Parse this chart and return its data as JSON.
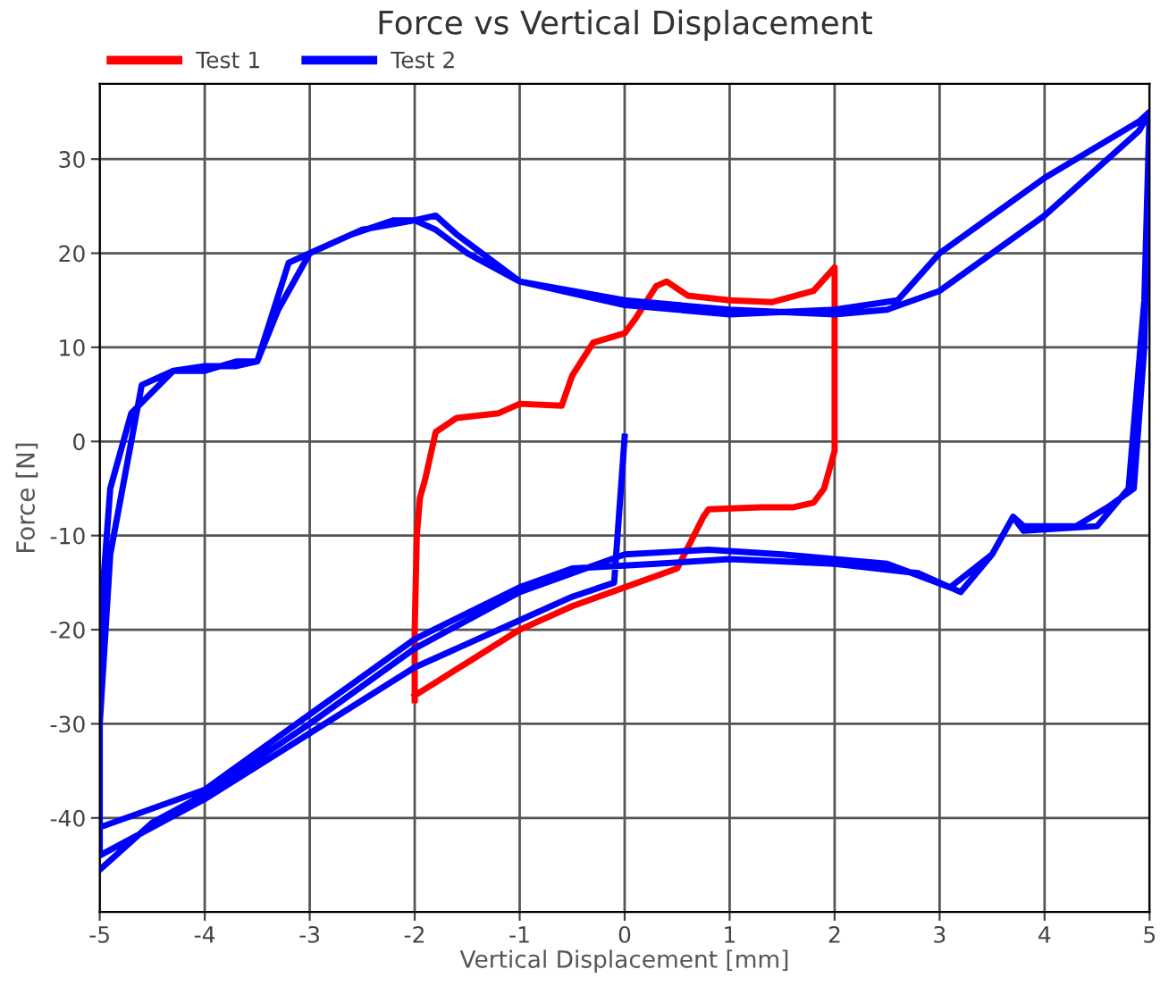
{
  "chart_data": {
    "type": "line",
    "title": "Force vs Vertical Displacement",
    "xlabel": "Vertical Displacement [mm]",
    "ylabel": "Force [N]",
    "xlim": [
      -5,
      5
    ],
    "xticks": [
      -5,
      -4,
      -3,
      -2,
      -1,
      0,
      1,
      2,
      3,
      4,
      5
    ],
    "ylim": [
      -50,
      38
    ],
    "yticks": [
      -40,
      -30,
      -20,
      -10,
      0,
      10,
      20,
      30
    ],
    "grid": true,
    "legend": "top left",
    "marker": "none",
    "line_style": "solid",
    "series": [
      {
        "name": "Test 1",
        "color": "#ff0000",
        "x": [
          -2,
          -2,
          -1.98,
          -1.95,
          -1.9,
          -1.8,
          -1.6,
          -1.2,
          -1,
          -0.6,
          -0.5,
          -0.3,
          0,
          0.1,
          0.3,
          0.4,
          0.6,
          1,
          1.4,
          1.8,
          2,
          2,
          1.95,
          1.9,
          1.8,
          1.6,
          1.3,
          0.8,
          0.75,
          0.5,
          0,
          -0.5,
          -1,
          -1.5,
          -2
        ],
        "values": [
          -27.5,
          -20,
          -10,
          -6,
          -4,
          1,
          2.5,
          3,
          4,
          3.8,
          7,
          10.5,
          11.5,
          13,
          16.5,
          17,
          15.5,
          15,
          14.8,
          16,
          18.5,
          -1,
          -3,
          -5,
          -6.5,
          -7,
          -7,
          -7.2,
          -8,
          -13.5,
          -15.5,
          -17.5,
          -20,
          -23.5,
          -27
        ]
      },
      {
        "name": "Test 2",
        "color": "#0000ff",
        "x": [
          0,
          -0.1,
          -0.5,
          -1,
          -2,
          -3,
          -4,
          -5,
          -5,
          -4.9,
          -4.7,
          -4.6,
          -4.3,
          -4,
          -3.7,
          -3.5,
          -3.2,
          -3,
          -2.6,
          -2.2,
          -2,
          -1.8,
          -1.6,
          -1,
          0,
          1,
          2,
          2.6,
          3,
          4,
          4.9,
          5,
          4.95,
          4.85,
          4.6,
          4.3,
          3.8,
          3.7,
          3.5,
          3.2,
          2.8,
          2,
          1,
          0.3,
          -0.5,
          -1,
          -2,
          -3,
          -4,
          -5,
          -5,
          -4.9,
          -4.7,
          -4.3,
          -4,
          -3.7,
          -3.5,
          -3.3,
          -3,
          -2.5,
          -2,
          -1.8,
          -1.5,
          -1,
          0,
          1,
          2,
          2.5,
          3,
          4,
          4.9,
          5,
          4.95,
          4.8,
          4.5,
          3.8,
          3.7,
          3.5,
          3.1,
          2.5,
          1.5,
          0.8,
          0,
          -1,
          -2,
          -3,
          -4,
          -4.5,
          -5
        ],
        "values": [
          0.5,
          -15,
          -16.5,
          -19,
          -24,
          -31,
          -38,
          -44,
          -30,
          -12,
          0,
          6,
          7.5,
          8,
          8,
          8.5,
          19,
          20,
          22,
          23.5,
          23.5,
          24,
          22,
          17,
          14.5,
          13.5,
          14,
          15,
          20,
          28,
          34,
          35,
          10,
          -5,
          -7,
          -9,
          -9,
          -8,
          -12,
          -16,
          -14,
          -13,
          -12.5,
          -13,
          -13.5,
          -15.5,
          -21,
          -29,
          -37,
          -41,
          -20,
          -5,
          3,
          7.5,
          7.5,
          8.5,
          8.5,
          14,
          20,
          22.5,
          23.5,
          22.5,
          20,
          17,
          15,
          14,
          13.5,
          14,
          16,
          24,
          33,
          35,
          15,
          -5,
          -9,
          -9.5,
          -8,
          -12,
          -15.5,
          -13,
          -12,
          -11.5,
          -12,
          -16,
          -22,
          -30,
          -37.5,
          -40.5,
          -45.5
        ]
      }
    ]
  }
}
